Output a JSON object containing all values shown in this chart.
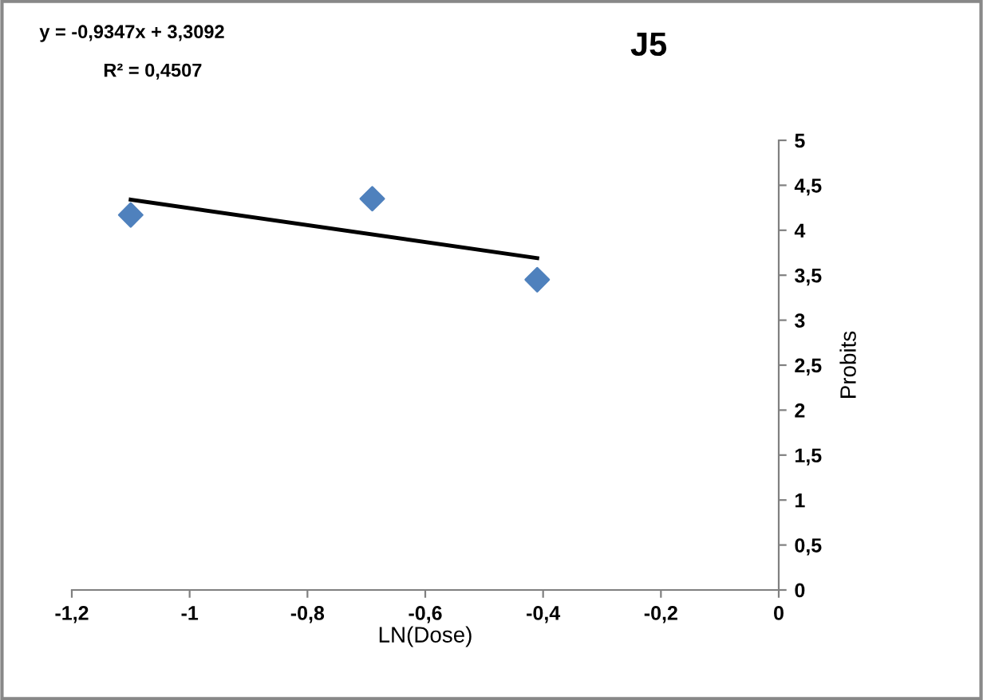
{
  "chart_data": {
    "type": "scatter",
    "title": "J5",
    "xlabel": "LN(Dose)",
    "ylabel": "Probits",
    "annotations": [
      "y = -0,9347x + 3,3092",
      "R² = 0,4507"
    ],
    "series": [
      {
        "color": "#4f81bd",
        "marker": "diamond",
        "x": [
          -1.1,
          -0.69,
          -0.41
        ],
        "values": [
          4.17,
          4.35,
          3.45
        ]
      },
      {
        "type": "line",
        "color": "#000000",
        "marker": "none",
        "line_style": "solid",
        "x": [
          -1.1,
          -0.41
        ],
        "values": [
          4.34,
          3.69
        ]
      }
    ],
    "xlim": [
      -1.2,
      0
    ],
    "ylim": [
      0,
      5
    ],
    "xticks": [
      {
        "value": -1.2,
        "label": "-1,2"
      },
      -1,
      {
        "value": -0.8,
        "label": "-0,8"
      },
      {
        "value": -0.6,
        "label": "-0,6"
      },
      {
        "value": -0.4,
        "label": "-0,4"
      },
      {
        "value": -0.2,
        "label": "-0,2"
      },
      0
    ],
    "yticks": [
      0,
      {
        "value": 0.5,
        "label": "0,5"
      },
      1,
      {
        "value": 1.5,
        "label": "1,5"
      },
      2,
      {
        "value": 2.5,
        "label": "2,5"
      },
      3,
      {
        "value": 3.5,
        "label": "3,5"
      },
      4,
      {
        "value": 4.5,
        "label": "4,5"
      },
      5
    ],
    "grid": false,
    "legend": false
  }
}
